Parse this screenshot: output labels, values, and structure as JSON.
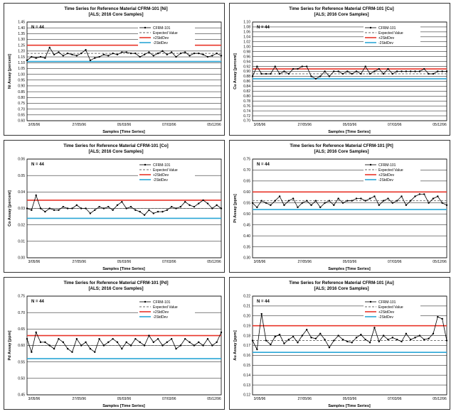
{
  "common": {
    "n_label": "N = 44",
    "xlabel": "Samples [Time Series]",
    "x_ticks": [
      "3/05/96",
      "27/05/96",
      "05/03/96",
      "07/03/96",
      "05/12/96"
    ],
    "legend": [
      "CFRM-101",
      "Expected Value",
      "+2StdDev",
      "-2StdDev"
    ],
    "colors": {
      "series": "#000000",
      "expected": "#666666",
      "upper": "#e8352a",
      "lower": "#2aa6d6",
      "grid": "#000000"
    }
  },
  "chart_data": [
    {
      "type": "line",
      "title": "Time Series for Reference Material CFRM-101 [Ni]",
      "subtitle": "[ALS; 2016 Core Samples]",
      "ylabel": "Ni Assay [percent]",
      "ylim": [
        0.6,
        1.45
      ],
      "yticks": [
        "0.60",
        "0.65",
        "0.70",
        "0.75",
        "0.80",
        "0.85",
        "0.90",
        "0.95",
        "1.00",
        "1.05",
        "1.10",
        "1.15",
        "1.20",
        "1.25",
        "1.30",
        "1.35",
        "1.40",
        "1.45"
      ],
      "expected": 1.18,
      "upper": 1.25,
      "lower": 1.11,
      "values": [
        1.12,
        1.15,
        1.14,
        1.15,
        1.14,
        1.23,
        1.17,
        1.19,
        1.16,
        1.18,
        1.17,
        1.16,
        1.18,
        1.21,
        1.12,
        1.14,
        1.15,
        1.17,
        1.16,
        1.18,
        1.17,
        1.19,
        1.19,
        1.18,
        1.18,
        1.15,
        1.17,
        1.19,
        1.16,
        1.18,
        1.2,
        1.17,
        1.19,
        1.15,
        1.18,
        1.19,
        1.16,
        1.18,
        1.18,
        1.17,
        1.15,
        1.16,
        1.18,
        1.16
      ]
    },
    {
      "type": "line",
      "title": "Time Series for Reference Material CFRM-101 [Cu]",
      "subtitle": "[ALS; 2016 Core Samples]",
      "ylabel": "Cu Assay [percent]",
      "ylim": [
        0.7,
        1.1
      ],
      "yticks": [
        "0.70",
        "0.72",
        "0.74",
        "0.76",
        "0.78",
        "0.80",
        "0.82",
        "0.84",
        "0.86",
        "0.88",
        "0.90",
        "0.92",
        "0.94",
        "0.96",
        "0.98",
        "1.00",
        "1.02",
        "1.04",
        "1.06",
        "1.08",
        "1.10"
      ],
      "expected": 0.89,
      "upper": 0.91,
      "lower": 0.87,
      "values": [
        0.88,
        0.92,
        0.89,
        0.89,
        0.89,
        0.92,
        0.89,
        0.9,
        0.89,
        0.91,
        0.91,
        0.92,
        0.92,
        0.88,
        0.87,
        0.88,
        0.9,
        0.88,
        0.9,
        0.9,
        0.89,
        0.9,
        0.89,
        0.9,
        0.89,
        0.92,
        0.89,
        0.9,
        0.91,
        0.89,
        0.91,
        0.89,
        0.9,
        0.9,
        0.9,
        0.9,
        0.9,
        0.9,
        0.91,
        0.89,
        0.89,
        0.9,
        0.9,
        0.9
      ]
    },
    {
      "type": "line",
      "title": "Time Series for Reference Material CFRM-101 [Co]",
      "subtitle": "[ALS; 2016 Core Samples]",
      "ylabel": "Co Assay [percent]",
      "ylim": [
        0.0,
        0.06
      ],
      "yticks": [
        "0.00",
        "0.01",
        "0.02",
        "0.03",
        "0.04",
        "0.05",
        "0.06"
      ],
      "expected": 0.03,
      "upper": 0.035,
      "lower": 0.024,
      "values": [
        0.03,
        0.029,
        0.038,
        0.03,
        0.028,
        0.03,
        0.029,
        0.029,
        0.031,
        0.03,
        0.03,
        0.032,
        0.03,
        0.03,
        0.027,
        0.029,
        0.031,
        0.03,
        0.031,
        0.029,
        0.032,
        0.034,
        0.03,
        0.031,
        0.029,
        0.028,
        0.026,
        0.029,
        0.027,
        0.028,
        0.028,
        0.029,
        0.031,
        0.03,
        0.031,
        0.034,
        0.032,
        0.031,
        0.033,
        0.035,
        0.033,
        0.03,
        0.032,
        0.03
      ]
    },
    {
      "type": "line",
      "title": "Time Series for Reference Material CFRM-101 [Pt]",
      "subtitle": "[ALS; 2016 Core Samples]",
      "ylabel": "Pt Assay [ppm]",
      "ylim": [
        0.3,
        0.75
      ],
      "yticks": [
        "0.30",
        "0.35",
        "0.40",
        "0.45",
        "0.50",
        "0.55",
        "0.60",
        "0.65",
        "0.70",
        "0.75"
      ],
      "expected": 0.56,
      "upper": 0.6,
      "lower": 0.52,
      "values": [
        0.55,
        0.53,
        0.56,
        0.55,
        0.54,
        0.56,
        0.58,
        0.54,
        0.56,
        0.57,
        0.53,
        0.55,
        0.56,
        0.54,
        0.56,
        0.53,
        0.55,
        0.56,
        0.54,
        0.57,
        0.55,
        0.56,
        0.56,
        0.57,
        0.57,
        0.56,
        0.57,
        0.58,
        0.54,
        0.56,
        0.57,
        0.55,
        0.56,
        0.58,
        0.54,
        0.56,
        0.58,
        0.59,
        0.59,
        0.55,
        0.57,
        0.58,
        0.55,
        0.54
      ]
    },
    {
      "type": "line",
      "title": "Time Series for Reference Material CFRM-101 [Pd]",
      "subtitle": "[ALS; 2016 Core Samples]",
      "ylabel": "Pd Assay [ppm]",
      "ylim": [
        0.45,
        0.75
      ],
      "yticks": [
        "0.45",
        "0.50",
        "0.55",
        "0.60",
        "0.65",
        "0.70",
        "0.75"
      ],
      "expected": 0.6,
      "upper": 0.63,
      "lower": 0.56,
      "values": [
        0.62,
        0.58,
        0.64,
        0.61,
        0.61,
        0.6,
        0.59,
        0.62,
        0.61,
        0.59,
        0.58,
        0.62,
        0.6,
        0.61,
        0.59,
        0.58,
        0.62,
        0.6,
        0.61,
        0.62,
        0.61,
        0.59,
        0.61,
        0.6,
        0.62,
        0.61,
        0.6,
        0.63,
        0.61,
        0.62,
        0.6,
        0.61,
        0.62,
        0.59,
        0.6,
        0.62,
        0.61,
        0.6,
        0.61,
        0.6,
        0.62,
        0.6,
        0.61,
        0.64
      ]
    },
    {
      "type": "line",
      "title": "Time Series for Reference Material CFRM-101 [Au]",
      "subtitle": "[ALS; 2016 Core Samples]",
      "ylabel": "Au Assay [ppm]",
      "ylim": [
        0.12,
        0.22
      ],
      "yticks": [
        "0.12",
        "0.13",
        "0.14",
        "0.15",
        "0.16",
        "0.17",
        "0.18",
        "0.19",
        "0.20",
        "0.21",
        "0.22"
      ],
      "expected": 0.175,
      "upper": 0.19,
      "lower": 0.163,
      "values": [
        0.175,
        0.166,
        0.202,
        0.175,
        0.171,
        0.179,
        0.181,
        0.172,
        0.176,
        0.179,
        0.173,
        0.18,
        0.186,
        0.178,
        0.177,
        0.182,
        0.176,
        0.168,
        0.175,
        0.18,
        0.176,
        0.174,
        0.173,
        0.178,
        0.181,
        0.176,
        0.173,
        0.188,
        0.174,
        0.18,
        0.176,
        0.178,
        0.176,
        0.174,
        0.182,
        0.176,
        0.178,
        0.18,
        0.176,
        0.177,
        0.182,
        0.199,
        0.197,
        0.175
      ]
    }
  ]
}
